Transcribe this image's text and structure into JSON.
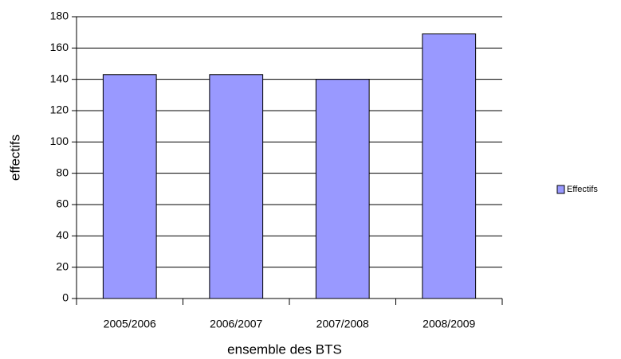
{
  "chart_data": {
    "type": "bar",
    "x_label": "ensemble des BTS",
    "y_label": "effectifs",
    "categories": [
      "2005/2006",
      "2006/2007",
      "2007/2008",
      "2008/2009"
    ],
    "series": [
      {
        "name": "Effectifs",
        "color": "#9999ff",
        "values": [
          143,
          143,
          140,
          169
        ]
      }
    ],
    "ylim": [
      0,
      180
    ],
    "yticks": [
      0,
      20,
      40,
      60,
      80,
      100,
      120,
      140,
      160,
      180
    ],
    "grid": true,
    "legend": "right"
  }
}
